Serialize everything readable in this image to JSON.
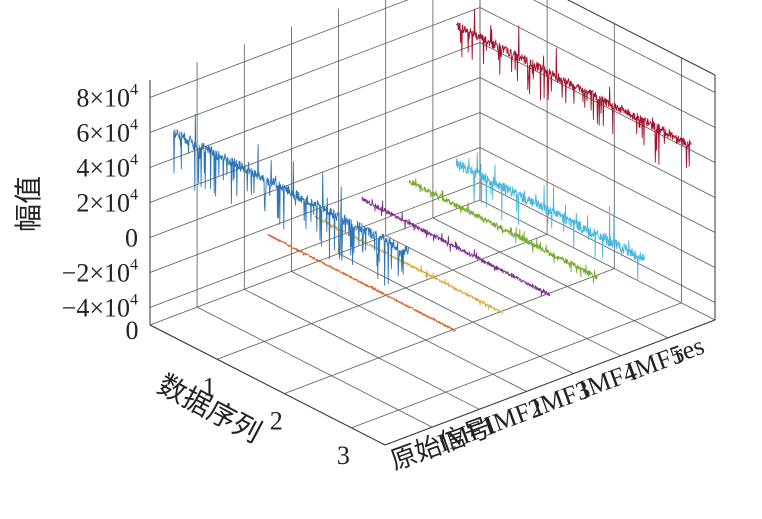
{
  "chart_data": {
    "type": "line",
    "view": "3d-waterfall",
    "xlabel": "数据序列",
    "ylabel": "幅值",
    "x_ticks": [
      "0",
      "1",
      "2",
      "3"
    ],
    "xlim": [
      0,
      3.5
    ],
    "z_ticks": [
      {
        "value": 80000,
        "mant": "8×10",
        "exp": "4"
      },
      {
        "value": 60000,
        "mant": "6×10",
        "exp": "4"
      },
      {
        "value": 40000,
        "mant": "4×10",
        "exp": "4"
      },
      {
        "value": 20000,
        "mant": "2×10",
        "exp": "4"
      },
      {
        "value": 0,
        "mant": "0",
        "exp": ""
      },
      {
        "value": -20000,
        "mant": "−2×10",
        "exp": "4"
      },
      {
        "value": -40000,
        "mant": "−4×10",
        "exp": "4"
      }
    ],
    "zlim": [
      -50000,
      90000
    ],
    "categories": [
      "原始信号",
      "IMF1",
      "IMF2",
      "IMF3",
      "IMF4",
      "IMF5",
      "res"
    ],
    "grid": true,
    "series": [
      {
        "name": "原始信号",
        "baseline": 55000,
        "color": "#2e75b6",
        "x_range": [
          0,
          3.5
        ],
        "noise": 3000,
        "spike_depth": 25000,
        "spikes": "dense-downward"
      },
      {
        "name": "IMF1",
        "baseline": 0,
        "color": "#d9622b",
        "x_range": [
          0.7,
          3.5
        ],
        "noise": 600,
        "spike_depth": 1500,
        "spikes": "small"
      },
      {
        "name": "IMF2",
        "baseline": 0,
        "color": "#e0a63a",
        "x_range": [
          0.7,
          3.5
        ],
        "noise": 800,
        "spike_depth": 2500,
        "spikes": "small"
      },
      {
        "name": "IMF3",
        "baseline": 0,
        "color": "#7e2f8e",
        "x_range": [
          0.7,
          3.5
        ],
        "noise": 1200,
        "spike_depth": 4000,
        "spikes": "small"
      },
      {
        "name": "IMF4",
        "baseline": 0,
        "color": "#77ac30",
        "x_range": [
          0.7,
          3.5
        ],
        "noise": 1500,
        "spike_depth": 5000,
        "spikes": "moderate"
      },
      {
        "name": "IMF5",
        "baseline": 0,
        "color": "#4db8dd",
        "x_range": [
          0.7,
          3.5
        ],
        "noise": 3000,
        "spike_depth": 20000,
        "spikes": "moderate"
      },
      {
        "name": "res",
        "baseline": 55000,
        "color": "#a2142f",
        "x_range": [
          0,
          3.5
        ],
        "noise": 2500,
        "spike_depth": 20000,
        "spikes": "dense-downward"
      }
    ]
  }
}
